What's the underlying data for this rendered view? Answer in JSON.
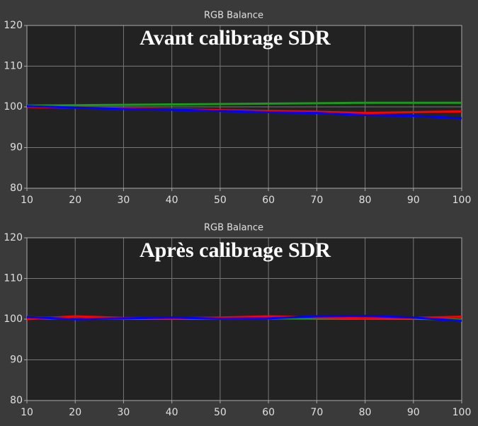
{
  "chart_data": [
    {
      "type": "line",
      "title": "RGB Balance",
      "annotation": "Avant calibrage SDR",
      "x": [
        10,
        20,
        30,
        40,
        50,
        60,
        70,
        80,
        90,
        100
      ],
      "xlim": [
        10,
        100
      ],
      "xticks": [
        10,
        20,
        30,
        40,
        50,
        60,
        70,
        80,
        90,
        100
      ],
      "ylim": [
        80,
        120
      ],
      "yticks": [
        80,
        90,
        100,
        110,
        120
      ],
      "grid": true,
      "series": [
        {
          "color": "#1a9a1a",
          "values": [
            100.3,
            100.4,
            100.5,
            100.6,
            100.7,
            100.8,
            100.9,
            101,
            101,
            101
          ]
        },
        {
          "color": "#ff0000",
          "values": [
            100,
            99.8,
            99.6,
            99.4,
            99.2,
            99.0,
            98.8,
            98.5,
            98.7,
            98.9
          ]
        },
        {
          "color": "#0000ff",
          "values": [
            100.2,
            99.8,
            99.5,
            99.3,
            99.0,
            98.7,
            98.5,
            98.0,
            97.8,
            97.2
          ]
        }
      ]
    },
    {
      "type": "line",
      "title": "RGB Balance",
      "annotation": "Après calibrage SDR",
      "x": [
        10,
        20,
        30,
        40,
        50,
        60,
        70,
        80,
        90,
        100
      ],
      "xlim": [
        10,
        100
      ],
      "xticks": [
        10,
        20,
        30,
        40,
        50,
        60,
        70,
        80,
        90,
        100
      ],
      "ylim": [
        80,
        120
      ],
      "yticks": [
        80,
        90,
        100,
        110,
        120
      ],
      "grid": true,
      "series": [
        {
          "color": "#1a9a1a",
          "values": [
            100.5,
            100.1,
            100.1,
            100.1,
            100.1,
            100.2,
            100.1,
            100.1,
            100.1,
            99.9
          ]
        },
        {
          "color": "#ff0000",
          "values": [
            100,
            100.7,
            100.3,
            100.2,
            100.4,
            100.7,
            100.4,
            100.2,
            100.3,
            100.6
          ]
        },
        {
          "color": "#0000ff",
          "values": [
            100.5,
            100.0,
            100.2,
            100.4,
            100.1,
            100.2,
            100.7,
            100.8,
            100.4,
            99.6
          ]
        }
      ]
    }
  ]
}
